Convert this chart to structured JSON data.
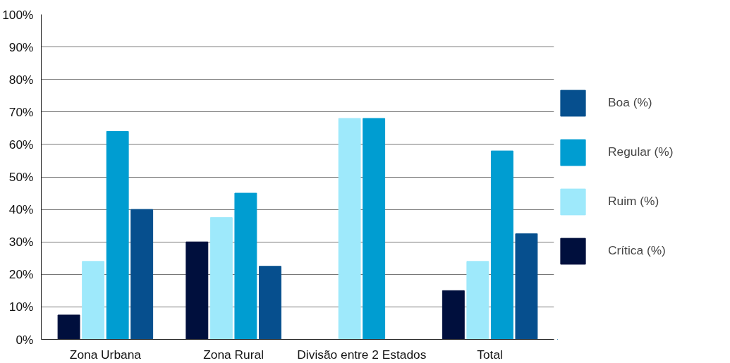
{
  "chart_data": {
    "type": "bar",
    "categories": [
      "Zona Urbana",
      "Zona Rural",
      "Divisão entre 2 Estados",
      "Total"
    ],
    "series": [
      {
        "name": "Crítica (%)",
        "color": "#000f3d",
        "values": [
          7.5,
          30,
          null,
          15
        ]
      },
      {
        "name": "Ruim (%)",
        "color": "#9ee9fb",
        "values": [
          24,
          37.5,
          68,
          24
        ]
      },
      {
        "name": "Regular (%)",
        "color": "#009dd1",
        "values": [
          64,
          45,
          68,
          58
        ]
      },
      {
        "name": "Boa (%)",
        "color": "#064f8e",
        "values": [
          40,
          22.5,
          null,
          32.5
        ]
      }
    ],
    "ylim": [
      0,
      100
    ],
    "yticks": [
      {
        "value": 0,
        "label": "0%"
      },
      {
        "value": 10,
        "label": "10%"
      },
      {
        "value": 20,
        "label": "20%"
      },
      {
        "value": 30,
        "label": "30%"
      },
      {
        "value": 40,
        "label": "40%"
      },
      {
        "value": 50,
        "label": "50%"
      },
      {
        "value": 60,
        "label": "60%"
      },
      {
        "value": 70,
        "label": "70%"
      },
      {
        "value": 80,
        "label": "80%"
      },
      {
        "value": 90,
        "label": "90%"
      },
      {
        "value": 100,
        "label": "100%"
      }
    ],
    "grid": "y",
    "legend": "right"
  }
}
